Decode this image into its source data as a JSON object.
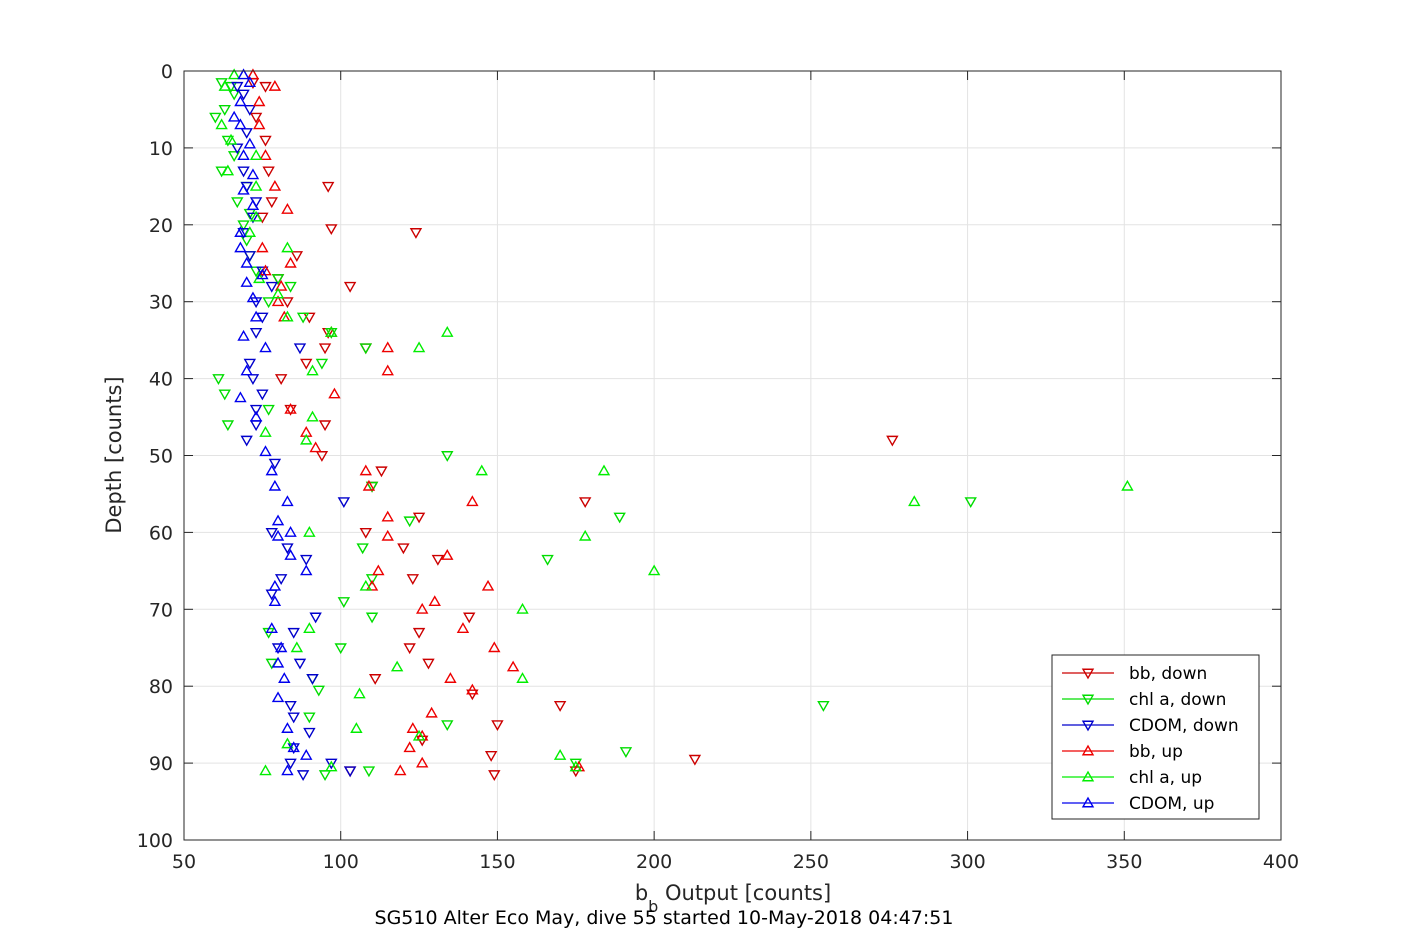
{
  "chart_data": {
    "type": "scatter",
    "xlabel_main": "b",
    "xlabel_sub": "b",
    "xlabel_rest": " Output [counts]",
    "ylabel": "Depth [counts]",
    "caption": "SG510 Alter Eco May, dive 55 started 10-May-2018 04:47:51",
    "xlim": [
      50,
      400
    ],
    "ylim": [
      0,
      100
    ],
    "y_reversed": true,
    "grid": true,
    "legend_position": "bottom-right",
    "x_ticks": [
      50,
      100,
      150,
      200,
      250,
      300,
      350,
      400
    ],
    "y_ticks": [
      0,
      10,
      20,
      30,
      40,
      50,
      60,
      70,
      80,
      90,
      100
    ],
    "series": [
      {
        "name": "bb, down",
        "color": "#cc0000",
        "marker": "triangle-down",
        "points": [
          [
            72,
            1.5
          ],
          [
            76,
            2
          ],
          [
            73,
            6
          ],
          [
            76,
            9
          ],
          [
            77,
            13
          ],
          [
            96,
            15
          ],
          [
            78,
            17
          ],
          [
            75,
            19
          ],
          [
            97,
            20.5
          ],
          [
            124,
            21
          ],
          [
            86,
            24
          ],
          [
            80,
            27
          ],
          [
            103,
            28
          ],
          [
            83,
            30
          ],
          [
            90,
            32
          ],
          [
            96,
            34
          ],
          [
            108,
            36
          ],
          [
            95,
            36
          ],
          [
            89,
            38
          ],
          [
            81,
            40
          ],
          [
            84,
            44
          ],
          [
            95,
            46
          ],
          [
            94,
            50
          ],
          [
            113,
            52
          ],
          [
            110,
            54
          ],
          [
            178,
            56
          ],
          [
            125,
            58
          ],
          [
            108,
            60
          ],
          [
            120,
            62
          ],
          [
            131,
            63.5
          ],
          [
            123,
            66
          ],
          [
            276,
            48
          ],
          [
            141,
            71
          ],
          [
            125,
            73
          ],
          [
            122,
            75
          ],
          [
            128,
            77
          ],
          [
            111,
            79
          ],
          [
            142,
            81
          ],
          [
            170,
            82.5
          ],
          [
            150,
            85
          ],
          [
            126,
            87
          ],
          [
            148,
            89
          ],
          [
            213,
            89.5
          ],
          [
            175,
            91
          ],
          [
            149,
            91.5
          ],
          [
            103,
            91
          ]
        ]
      },
      {
        "name": "chl a, down",
        "color": "#00dd00",
        "marker": "triangle-down",
        "points": [
          [
            62,
            1.5
          ],
          [
            65,
            2
          ],
          [
            66,
            3
          ],
          [
            63,
            5
          ],
          [
            60,
            6
          ],
          [
            64,
            9
          ],
          [
            66,
            11
          ],
          [
            62,
            13
          ],
          [
            70,
            15
          ],
          [
            67,
            17
          ],
          [
            71,
            18.5
          ],
          [
            69,
            20
          ],
          [
            70,
            22
          ],
          [
            71,
            24
          ],
          [
            73,
            26
          ],
          [
            80,
            27
          ],
          [
            84,
            28
          ],
          [
            77,
            30
          ],
          [
            88,
            32
          ],
          [
            97,
            34
          ],
          [
            108,
            36
          ],
          [
            94,
            38
          ],
          [
            61,
            40
          ],
          [
            63,
            42
          ],
          [
            77,
            44
          ],
          [
            64,
            46
          ],
          [
            134,
            50
          ],
          [
            110,
            54
          ],
          [
            301,
            56
          ],
          [
            189,
            58
          ],
          [
            122,
            58.5
          ],
          [
            107,
            62
          ],
          [
            166,
            63.5
          ],
          [
            110,
            66
          ],
          [
            101,
            69
          ],
          [
            110,
            71
          ],
          [
            77,
            73
          ],
          [
            100,
            75
          ],
          [
            78,
            77
          ],
          [
            91,
            79
          ],
          [
            93,
            80.5
          ],
          [
            254,
            82.5
          ],
          [
            90,
            84
          ],
          [
            134,
            85
          ],
          [
            191,
            88.5
          ],
          [
            175,
            90
          ],
          [
            109,
            91
          ],
          [
            95,
            91.5
          ]
        ]
      },
      {
        "name": "CDOM, down",
        "color": "#0000cc",
        "marker": "triangle-down",
        "points": [
          [
            67,
            2
          ],
          [
            69,
            3
          ],
          [
            71,
            5
          ],
          [
            70,
            8
          ],
          [
            67,
            10
          ],
          [
            69,
            13
          ],
          [
            70,
            15
          ],
          [
            73,
            17
          ],
          [
            72,
            19
          ],
          [
            69,
            21
          ],
          [
            71,
            24
          ],
          [
            75,
            26
          ],
          [
            78,
            28
          ],
          [
            73,
            30
          ],
          [
            75,
            32
          ],
          [
            73,
            34
          ],
          [
            87,
            36
          ],
          [
            71,
            38
          ],
          [
            72,
            40
          ],
          [
            75,
            42
          ],
          [
            73,
            44
          ],
          [
            73,
            46
          ],
          [
            70,
            48
          ],
          [
            79,
            51
          ],
          [
            101,
            56
          ],
          [
            78,
            60
          ],
          [
            83,
            62
          ],
          [
            89,
            63.5
          ],
          [
            81,
            66
          ],
          [
            78,
            68
          ],
          [
            92,
            71
          ],
          [
            85,
            73
          ],
          [
            80,
            75
          ],
          [
            87,
            77
          ],
          [
            91,
            79
          ],
          [
            84,
            82.5
          ],
          [
            85,
            84
          ],
          [
            90,
            86
          ],
          [
            85,
            88
          ],
          [
            84,
            90
          ],
          [
            97,
            90
          ],
          [
            103,
            91
          ],
          [
            88,
            91.5
          ]
        ]
      },
      {
        "name": "bb, up",
        "color": "#ee0000",
        "marker": "triangle-up",
        "points": [
          [
            72,
            0.5
          ],
          [
            79,
            2
          ],
          [
            74,
            4
          ],
          [
            74,
            7
          ],
          [
            76,
            11
          ],
          [
            79,
            15
          ],
          [
            83,
            18
          ],
          [
            75,
            23
          ],
          [
            84,
            25
          ],
          [
            76,
            26
          ],
          [
            81,
            28
          ],
          [
            80,
            30
          ],
          [
            82,
            32
          ],
          [
            97,
            34
          ],
          [
            115,
            36
          ],
          [
            115,
            39
          ],
          [
            98,
            42
          ],
          [
            84,
            44
          ],
          [
            89,
            47
          ],
          [
            92,
            49
          ],
          [
            108,
            52
          ],
          [
            109,
            54
          ],
          [
            142,
            56
          ],
          [
            115,
            58
          ],
          [
            115,
            60.5
          ],
          [
            134,
            63
          ],
          [
            112,
            65
          ],
          [
            110,
            67
          ],
          [
            147,
            67
          ],
          [
            126,
            70
          ],
          [
            130,
            69
          ],
          [
            139,
            72.5
          ],
          [
            149,
            75
          ],
          [
            155,
            77.5
          ],
          [
            135,
            79
          ],
          [
            142,
            80.5
          ],
          [
            129,
            83.5
          ],
          [
            123,
            85.5
          ],
          [
            126,
            86.5
          ],
          [
            122,
            88
          ],
          [
            126,
            90
          ],
          [
            119,
            91
          ],
          [
            176,
            90.5
          ]
        ]
      },
      {
        "name": "chl a, up",
        "color": "#00ee00",
        "marker": "triangle-up",
        "points": [
          [
            66,
            0.5
          ],
          [
            63,
            2
          ],
          [
            62,
            7
          ],
          [
            65,
            9
          ],
          [
            73,
            11
          ],
          [
            64,
            13
          ],
          [
            73,
            15
          ],
          [
            73,
            19
          ],
          [
            71,
            21
          ],
          [
            83,
            23
          ],
          [
            74,
            27
          ],
          [
            80,
            29
          ],
          [
            83,
            32
          ],
          [
            97,
            34
          ],
          [
            134,
            34
          ],
          [
            125,
            36
          ],
          [
            91,
            39
          ],
          [
            91,
            45
          ],
          [
            89,
            48
          ],
          [
            76,
            47
          ],
          [
            145,
            52
          ],
          [
            184,
            52
          ],
          [
            351,
            54
          ],
          [
            283,
            56
          ],
          [
            90,
            60
          ],
          [
            178,
            60.5
          ],
          [
            200,
            65
          ],
          [
            108,
            67
          ],
          [
            158,
            70
          ],
          [
            90,
            72.5
          ],
          [
            86,
            75
          ],
          [
            118,
            77.5
          ],
          [
            158,
            79
          ],
          [
            106,
            81
          ],
          [
            105,
            85.5
          ],
          [
            125,
            86.5
          ],
          [
            83,
            87.5
          ],
          [
            170,
            89
          ],
          [
            175,
            90.5
          ],
          [
            97,
            90.5
          ],
          [
            76,
            91
          ]
        ]
      },
      {
        "name": "CDOM, up",
        "color": "#0000ee",
        "marker": "triangle-up",
        "points": [
          [
            69,
            0.5
          ],
          [
            71,
            1.5
          ],
          [
            68,
            4
          ],
          [
            66,
            6
          ],
          [
            68,
            7
          ],
          [
            71,
            9.5
          ],
          [
            69,
            11
          ],
          [
            72,
            13.5
          ],
          [
            69,
            15.5
          ],
          [
            72,
            17.5
          ],
          [
            68,
            21
          ],
          [
            68,
            23
          ],
          [
            70,
            25
          ],
          [
            75,
            26.5
          ],
          [
            70,
            27.5
          ],
          [
            72,
            29.5
          ],
          [
            73,
            32
          ],
          [
            76,
            36
          ],
          [
            69,
            34.5
          ],
          [
            70,
            39
          ],
          [
            68,
            42.5
          ],
          [
            73,
            45
          ],
          [
            76,
            49.5
          ],
          [
            78,
            52
          ],
          [
            79,
            54
          ],
          [
            83,
            56
          ],
          [
            80,
            58.5
          ],
          [
            84,
            60
          ],
          [
            80,
            60.5
          ],
          [
            84,
            63
          ],
          [
            89,
            65
          ],
          [
            79,
            67
          ],
          [
            79,
            69
          ],
          [
            78,
            72.5
          ],
          [
            81,
            75
          ],
          [
            80,
            77
          ],
          [
            82,
            79
          ],
          [
            80,
            81.5
          ],
          [
            83,
            85.5
          ],
          [
            85,
            88
          ],
          [
            89,
            89
          ],
          [
            83,
            91
          ]
        ]
      }
    ]
  }
}
